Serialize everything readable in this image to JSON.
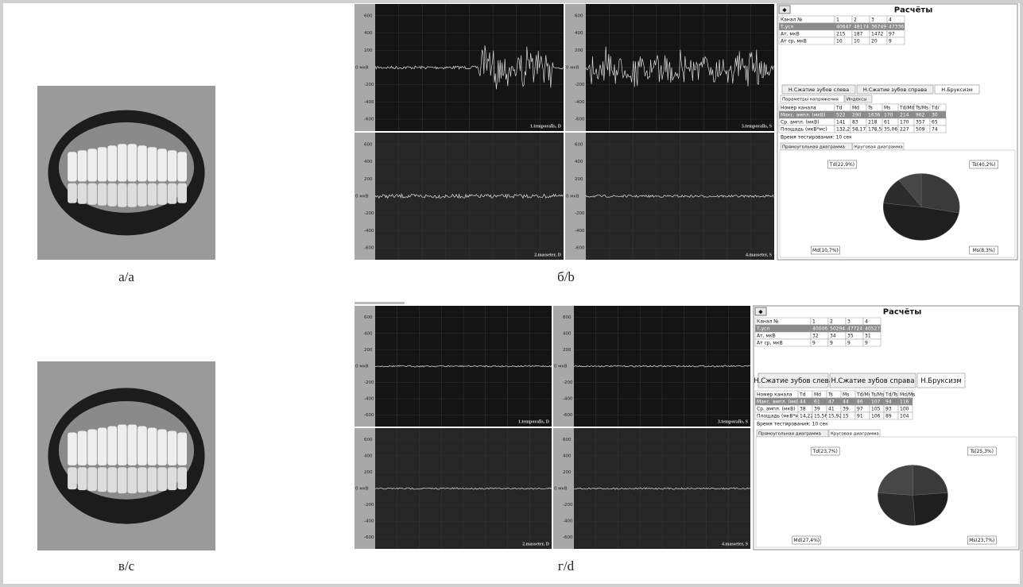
{
  "photos": [
    {
      "caption": "а/а"
    },
    {
      "caption": "в/с"
    }
  ],
  "panels": [
    {
      "caption": "б/b",
      "emg": {
        "y_ticks": [
          600,
          400,
          200,
          {
            "value": 0,
            "label": "0 мкВ"
          },
          -200,
          -400,
          -600
        ],
        "channels": [
          "1.temporalis, D",
          "3.temporalis, S",
          "2.masseter, D",
          "4.masseter, S"
        ]
      },
      "results": {
        "title": "Расчёты",
        "button": "◆",
        "table1": {
          "header": [
            "Канал №",
            "1",
            "2",
            "3",
            "4"
          ],
          "rows": [
            [
              "Т,усл",
              40647,
              48174,
              36749,
              47336
            ],
            [
              "Ат, мкВ",
              215,
              187,
              1472,
              97
            ],
            [
              "Ат ср, мкВ",
              10,
              10,
              20,
              9
            ]
          ]
        },
        "tabs": [
          "Н.Сжатие зубов слева",
          "Н.Сжатие зубов справа",
          "Н.Бруксизм"
        ],
        "subtabs": [
          "Параметры напряжения",
          "Индексы"
        ],
        "table2": {
          "header": [
            "Номер канала",
            "Td",
            "Md",
            "Ts",
            "Ms",
            "Td/Md",
            "Ts/Ms",
            "Td/"
          ],
          "rows": [
            [
              "Макс. ампл. (мкВ)",
              522,
              290,
              1636,
              170,
              214,
              962,
              30
            ],
            [
              "Ср. ампл. (мкВ)",
              141,
              83,
              218,
              61,
              170,
              357,
              65
            ],
            [
              "Площадь (мкВ*мс)",
              "132,25",
              "58,17",
              "178,58",
              "35,06",
              227,
              509,
              74
            ]
          ]
        },
        "test_time": "Время тестирования: 10 сек",
        "pie_tabs": [
          "Прямоугольная диаграмма",
          "Круговая диаграмма"
        ],
        "pie": [
          {
            "label": "Td(22,9%)",
            "value": 22.9
          },
          {
            "label": "Ts(40,2%)",
            "value": 40.2
          },
          {
            "label": "Md(10,7%)",
            "value": 10.7
          },
          {
            "label": "Ms(8,3%)",
            "value": 8.3
          }
        ]
      }
    },
    {
      "caption": "г/d",
      "emg": {
        "y_ticks": [
          600,
          400,
          200,
          {
            "value": 0,
            "label": "0 мкВ"
          },
          -200,
          -400,
          -600
        ],
        "channels": [
          "1.temporalis, D",
          "3.temporalis, S",
          "2.masseter, D",
          "4.masseter, S"
        ]
      },
      "results": {
        "title": "Расчёты",
        "button": "◆",
        "table1": {
          "header": [
            "Канал №",
            "1",
            "2",
            "3",
            "4"
          ],
          "rows": [
            [
              "Т,усл",
              40006,
              50294,
              47724,
              40527
            ],
            [
              "Ат, мкВ",
              32,
              34,
              35,
              31
            ],
            [
              "Ат ср, мкВ",
              9,
              9,
              9,
              9
            ]
          ]
        },
        "tabs": [
          "Н.Сжатие зубов слева",
          "Н.Сжатие зубов справа",
          "Н.Бруксизм"
        ],
        "subtabs": [],
        "table2": {
          "header": [
            "Номер канала",
            "Td",
            "Md",
            "Ts",
            "Ms",
            "Td/Md",
            "Ts/Ms",
            "Td/Ts",
            "Md/Ms"
          ],
          "rows": [
            [
              "Макс. ампл. (мкВ)",
              44,
              61,
              47,
              44,
              86,
              107,
              94,
              116
            ],
            [
              "Ср. ампл. (мкВ)",
              38,
              39,
              41,
              39,
              97,
              105,
              93,
              100
            ],
            [
              "Площадь (мкВ*мс)",
              "14,22",
              "15,56",
              "15,92",
              15,
              91,
              106,
              89,
              104
            ]
          ]
        },
        "test_time": "Время тестирования: 10 сек",
        "pie_tabs": [
          "Прямоугольная диаграмма",
          "Круговая диаграмма"
        ],
        "pie": [
          {
            "label": "Td(23,7%)",
            "value": 23.7
          },
          {
            "label": "Ts(25,3%)",
            "value": 25.3
          },
          {
            "label": "Md(27,4%)",
            "value": 27.4
          },
          {
            "label": "Ms(23,7%)",
            "value": 23.7
          }
        ]
      }
    }
  ]
}
